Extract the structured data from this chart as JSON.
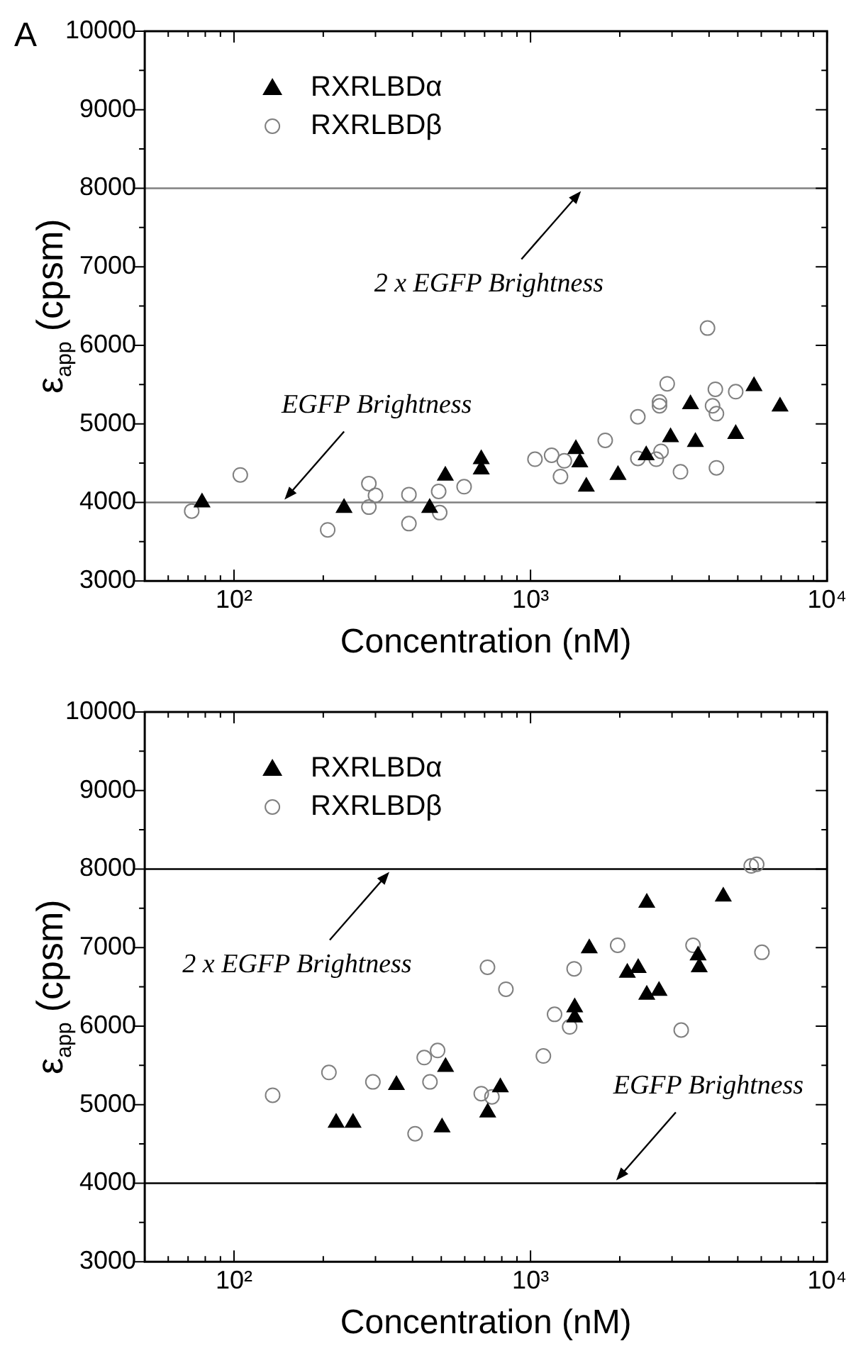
{
  "chart_data": [
    {
      "type": "scatter",
      "xlabel": "Concentration (nM)",
      "ylabel": "ε$_{app}$ (cpsm)",
      "log": "x",
      "grid": false,
      "legend": "top left",
      "xlim": [
        50,
        10000
      ],
      "ylim": [
        3000,
        10000
      ],
      "xticks": [
        {
          "value": 50,
          "label": null
        },
        {
          "value": 60,
          "label": null
        },
        {
          "value": 70,
          "label": null
        },
        {
          "value": 80,
          "label": null
        },
        {
          "value": 90,
          "label": null
        },
        {
          "value": 100,
          "label": "10²"
        },
        {
          "value": 200,
          "label": null
        },
        {
          "value": 300,
          "label": null
        },
        {
          "value": 400,
          "label": null
        },
        {
          "value": 500,
          "label": null
        },
        {
          "value": 600,
          "label": null
        },
        {
          "value": 700,
          "label": null
        },
        {
          "value": 800,
          "label": null
        },
        {
          "value": 900,
          "label": null
        },
        {
          "value": 1000,
          "label": "10³"
        },
        {
          "value": 2000,
          "label": null
        },
        {
          "value": 3000,
          "label": null
        },
        {
          "value": 4000,
          "label": null
        },
        {
          "value": 5000,
          "label": null
        },
        {
          "value": 6000,
          "label": null
        },
        {
          "value": 7000,
          "label": null
        },
        {
          "value": 8000,
          "label": null
        },
        {
          "value": 9000,
          "label": null
        },
        {
          "value": 10000,
          "label": "10⁴"
        }
      ],
      "yticks": [
        3000,
        {
          "value": 3500,
          "label": null
        },
        4000,
        {
          "value": 4500,
          "label": null
        },
        5000,
        {
          "value": 5500,
          "label": null
        },
        6000,
        {
          "value": 6500,
          "label": null
        },
        7000,
        {
          "value": 7500,
          "label": null
        },
        8000,
        {
          "value": 8500,
          "label": null
        },
        9000,
        {
          "value": 9500,
          "label": null
        },
        10000
      ],
      "series": [
        {
          "name": "RXRLBDα",
          "color": "#000000",
          "marker": "triangle",
          "x": [
            78,
            235,
            457,
            516,
            682,
            682,
            1422,
            1466,
            1542,
            1972,
            2455,
            2966,
            3462,
            3597,
            4920,
            5670,
            6940
          ],
          "values": [
            4000,
            3930,
            3930,
            4340,
            4550,
            4420,
            4680,
            4510,
            4200,
            4350,
            4600,
            4830,
            5250,
            4770,
            4870,
            5480,
            5220
          ]
        },
        {
          "name": "RXRLBDβ",
          "color": "#808080",
          "marker": "circle",
          "x": [
            72,
            105,
            207,
            285,
            285,
            300,
            389,
            389,
            490,
            494,
            597,
            1035,
            1178,
            1300,
            1262,
            1786,
            2301,
            2301,
            2654,
            2723,
            2723,
            2755,
            2890,
            3204,
            3953,
            4110,
            4200,
            4236,
            4236,
            4920
          ],
          "values": [
            3890,
            4350,
            3650,
            3940,
            4240,
            4090,
            3730,
            4100,
            4140,
            3870,
            4200,
            4550,
            4600,
            4530,
            4330,
            4790,
            5090,
            4560,
            4550,
            5230,
            5280,
            4650,
            5510,
            4390,
            6220,
            5230,
            5440,
            5130,
            4440,
            5410
          ]
        }
      ],
      "ref_lines": [
        {
          "axis": "y",
          "value": 8000,
          "color": "#808080"
        },
        {
          "axis": "y",
          "value": 4000,
          "color": "#808080"
        }
      ],
      "annotations": [
        "A",
        {
          "text": "2 x EGFP Brightness",
          "x": 1480,
          "y": 8000
        },
        {
          "text": "EGFP Brightness",
          "x": 148,
          "y": 4000
        }
      ]
    },
    {
      "type": "scatter",
      "xlabel": "Concentration (nM)",
      "ylabel": "ε$_{app}$ (cpsm)",
      "log": "x",
      "grid": false,
      "legend": "top left",
      "xlim": [
        50,
        10000
      ],
      "ylim": [
        3000,
        10000
      ],
      "xticks": [
        {
          "value": 50,
          "label": null
        },
        {
          "value": 60,
          "label": null
        },
        {
          "value": 70,
          "label": null
        },
        {
          "value": 80,
          "label": null
        },
        {
          "value": 90,
          "label": null
        },
        {
          "value": 100,
          "label": "10²"
        },
        {
          "value": 200,
          "label": null
        },
        {
          "value": 300,
          "label": null
        },
        {
          "value": 400,
          "label": null
        },
        {
          "value": 500,
          "label": null
        },
        {
          "value": 600,
          "label": null
        },
        {
          "value": 700,
          "label": null
        },
        {
          "value": 800,
          "label": null
        },
        {
          "value": 900,
          "label": null
        },
        {
          "value": 1000,
          "label": "10³"
        },
        {
          "value": 2000,
          "label": null
        },
        {
          "value": 3000,
          "label": null
        },
        {
          "value": 4000,
          "label": null
        },
        {
          "value": 5000,
          "label": null
        },
        {
          "value": 6000,
          "label": null
        },
        {
          "value": 7000,
          "label": null
        },
        {
          "value": 8000,
          "label": null
        },
        {
          "value": 9000,
          "label": null
        },
        {
          "value": 10000,
          "label": "10⁴"
        }
      ],
      "yticks": [
        3000,
        {
          "value": 3500,
          "label": null
        },
        4000,
        {
          "value": 4500,
          "label": null
        },
        5000,
        {
          "value": 5500,
          "label": null
        },
        6000,
        {
          "value": 6500,
          "label": null
        },
        7000,
        {
          "value": 7500,
          "label": null
        },
        8000,
        {
          "value": 8500,
          "label": null
        },
        9000,
        {
          "value": 9500,
          "label": null
        },
        10000
      ],
      "series": [
        {
          "name": "RXRLBDα",
          "color": "#000000",
          "marker": "triangle",
          "x": [
            221,
            252,
            353,
            503,
            517,
            717,
            791,
            1409,
            1409,
            1578,
            2120,
            2307,
            2466,
            2466,
            2712,
            3673,
            3706,
            4467
          ],
          "values": [
            4770,
            4770,
            5250,
            4710,
            5480,
            4900,
            5220,
            6240,
            6110,
            6990,
            6680,
            6740,
            7570,
            6400,
            6450,
            6900,
            6750,
            7650
          ]
        },
        {
          "name": "RXRLBDβ",
          "color": "#808080",
          "marker": "circle",
          "x": [
            135,
            209,
            294,
            408,
            438,
            458,
            486,
            682,
            716,
            741,
            826,
            1105,
            1205,
            1355,
            1403,
            1967,
            3222,
            3532,
            5550,
            5790,
            6030
          ],
          "values": [
            5120,
            5410,
            5290,
            4630,
            5600,
            5290,
            5690,
            5140,
            6750,
            5100,
            6470,
            5620,
            6150,
            5990,
            6730,
            7030,
            5950,
            7030,
            8040,
            8060,
            6940
          ]
        }
      ],
      "ref_lines": [
        {
          "axis": "y",
          "value": 8000,
          "color": "#000000"
        },
        {
          "axis": "y",
          "value": 4000,
          "color": "#000000"
        }
      ],
      "annotations": [
        {
          "text": "2 x EGFP Brightness",
          "x": 334,
          "y": 8000
        },
        {
          "text": "EGFP Brightness",
          "x": 1945,
          "y": 4000
        }
      ]
    }
  ]
}
